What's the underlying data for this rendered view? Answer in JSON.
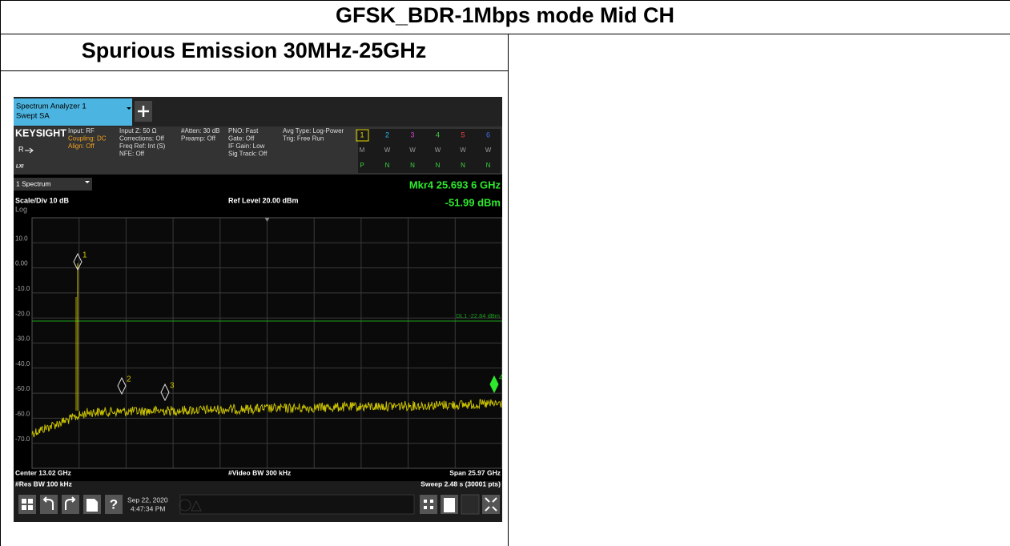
{
  "header": {
    "title": "GFSK_BDR-1Mbps mode Mid CH"
  },
  "section": {
    "title": "Spurious Emission 30MHz-25GHz"
  },
  "analyzer": {
    "tab": [
      "Spectrum Analyzer 1",
      "Swept SA"
    ],
    "brand": "KEYSIGHT",
    "mode_label": "R",
    "lxi": "LXI",
    "settings": [
      [
        "Input: RF",
        "Coupling: DC",
        "Align: Off"
      ],
      [
        "Input Z: 50 Ω",
        "Corrections: Off",
        "Freq Ref: Int (S)",
        "NFE: Off"
      ],
      [
        "#Atten: 30 dB",
        "Preamp: Off"
      ],
      [
        "PNO: Fast",
        "Gate: Off",
        "IF Gain: Low",
        "Sig Track: Off"
      ],
      [
        "Avg Type: Log-Power",
        "Trig: Free Run"
      ]
    ],
    "traces": {
      "numbers": [
        "1",
        "2",
        "3",
        "4",
        "5",
        "6"
      ],
      "types": [
        "M",
        "W",
        "W",
        "W",
        "W",
        "W"
      ],
      "detectors": [
        "P",
        "N",
        "N",
        "N",
        "N",
        "N"
      ]
    },
    "window": "1 Spectrum",
    "marker_readout": [
      "Mkr4  25.693 6 GHz",
      "-51.99 dBm"
    ],
    "scale": "Scale/Div 10 dB",
    "scale_type": "Log",
    "ref_level": "Ref Level 20.00 dBm",
    "y_labels": [
      "10.0",
      "0.00",
      "-10.0",
      "-20.0",
      "-30.0",
      "-40.0",
      "-50.0",
      "-60.0",
      "-70.0"
    ],
    "display_line": "DL1 -22.84 dBm",
    "markers": [
      "1",
      "2",
      "3",
      "4"
    ],
    "footer": [
      [
        "Center 13.02 GHz",
        "#Video BW 300 kHz",
        "Span 25.97 GHz"
      ],
      [
        "#Res BW 100 kHz",
        "Sweep 2.48 s (30001 pts)"
      ]
    ],
    "help_icon": "?",
    "date": "Sep 22, 2020",
    "time": "4:47:34 PM"
  }
}
